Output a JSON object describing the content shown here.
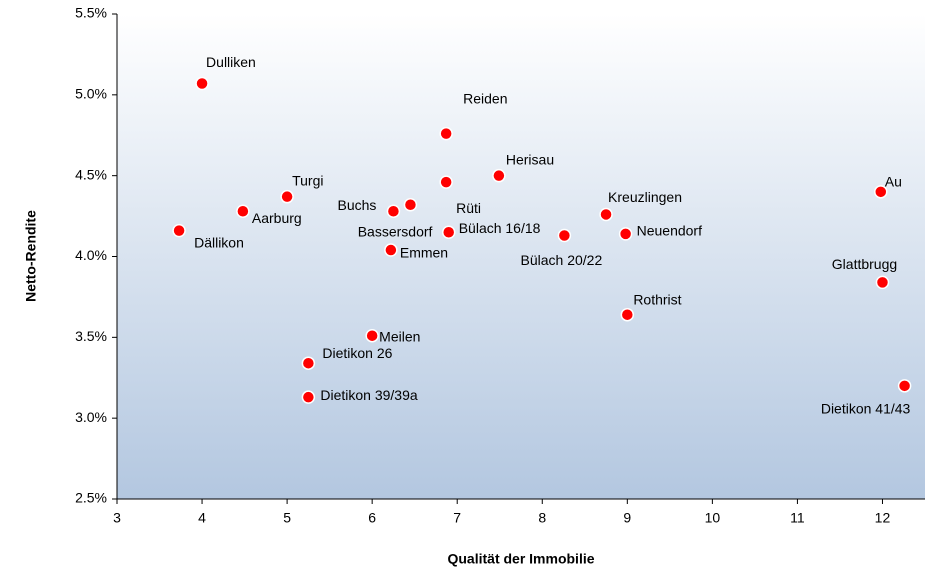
{
  "chart_data": {
    "type": "scatter",
    "x_label": "Qualität der Immobilie",
    "y_label": "Netto-Rendite",
    "color": "#ff0000",
    "labels": [
      "Dulliken",
      "Reiden",
      "Herisau",
      "Rüti",
      "Turgi",
      "Bassersdorf",
      "Buchs",
      "Aarburg",
      "Kreuzlingen",
      "Au",
      "Bülach 16/18",
      "Dällikon",
      "Emmen",
      "Neuendorf",
      "Bülach 20/22",
      "Glattbrugg",
      "Rothrist",
      "Meilen",
      "Dietikon 26",
      "Dietikon 39/39a",
      "Dietikon 41/43"
    ],
    "x": [
      4.0,
      6.87,
      7.49,
      6.87,
      5.0,
      6.45,
      6.25,
      4.48,
      8.75,
      11.98,
      6.9,
      3.73,
      6.22,
      8.98,
      8.26,
      12.0,
      9.0,
      6.0,
      5.25,
      5.25,
      12.26
    ],
    "values": [
      5.07,
      4.76,
      4.5,
      4.46,
      4.37,
      4.32,
      4.28,
      4.28,
      4.26,
      4.4,
      4.15,
      4.16,
      4.04,
      4.14,
      4.13,
      3.84,
      3.64,
      3.51,
      3.34,
      3.13,
      3.2
    ],
    "xlim": [
      3,
      12.5
    ],
    "xticks": [
      3,
      4,
      5,
      6,
      7,
      8,
      9,
      10,
      11,
      12
    ],
    "ylim": [
      2.5,
      5.5
    ],
    "yticks": [
      {
        "value": 2.5,
        "label": "2.5%"
      },
      {
        "value": 3.0,
        "label": "3.0%"
      },
      {
        "value": 3.5,
        "label": "3.5%"
      },
      {
        "value": 4.0,
        "label": "4.0%"
      },
      {
        "value": 4.5,
        "label": "4.5%"
      },
      {
        "value": 5.0,
        "label": "5.0%"
      },
      {
        "value": 5.5,
        "label": "5.5%"
      }
    ]
  }
}
